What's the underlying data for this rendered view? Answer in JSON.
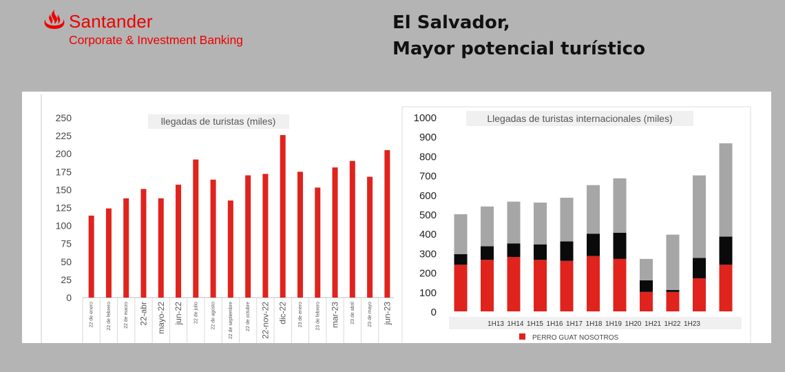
{
  "header": {
    "brand_name": "Santander",
    "brand_sub": "Corporate & Investment Banking",
    "title_line1": "El Salvador,",
    "title_line2": "Mayor potencial turístico",
    "brand_color": "#ec0000"
  },
  "chart_data": [
    {
      "type": "bar",
      "title": "llegadas de turistas (miles)",
      "categories": [
        "22 de enero",
        "22 de febrero",
        "22 de marzo",
        "22-abr",
        "mayo-22",
        "jun-22",
        "22 de julio",
        "22 de agosto",
        "22 de septiembre",
        "22 de octubre",
        "22-nov-22",
        "dic-22",
        "23 de enero",
        "23 de febrero",
        "mar-23",
        "23 de abril",
        "23 de mayo",
        "jun-23"
      ],
      "values": [
        114,
        124,
        138,
        151,
        138,
        157,
        192,
        164,
        135,
        170,
        172,
        226,
        175,
        153,
        181,
        190,
        168,
        205
      ],
      "ylim": [
        0,
        250
      ],
      "yticks": [
        0,
        25,
        50,
        75,
        100,
        125,
        150,
        175,
        200,
        225,
        250
      ],
      "color": "#e0231d",
      "grid": false
    },
    {
      "type": "bar",
      "stacked": true,
      "title": "Llegadas de turistas internacionales (miles)",
      "categories": [
        "1H13",
        "1H14",
        "1H15",
        "1H16",
        "1H17",
        "1H18",
        "1H19",
        "1H20",
        "1H21",
        "1H22",
        "1H23"
      ],
      "series": [
        {
          "values": [
            240,
            265,
            280,
            265,
            260,
            285,
            270,
            100,
            100,
            170,
            240
          ],
          "color": "#e0231d"
        },
        {
          "values": [
            55,
            70,
            70,
            80,
            100,
            115,
            135,
            60,
            10,
            105,
            145
          ],
          "color": "#0a0a0a"
        },
        {
          "values": [
            205,
            205,
            215,
            215,
            225,
            250,
            280,
            110,
            285,
            425,
            480
          ],
          "color": "#a6a6a6"
        }
      ],
      "ylim": [
        0,
        1000
      ],
      "yticks": [
        0,
        100,
        200,
        300,
        400,
        500,
        600,
        700,
        800,
        900,
        1000
      ],
      "legend": {
        "label": "PERRO GUAT NOSOTROS",
        "color": "#e0231d",
        "placement": "bottom"
      },
      "grid": false
    }
  ]
}
